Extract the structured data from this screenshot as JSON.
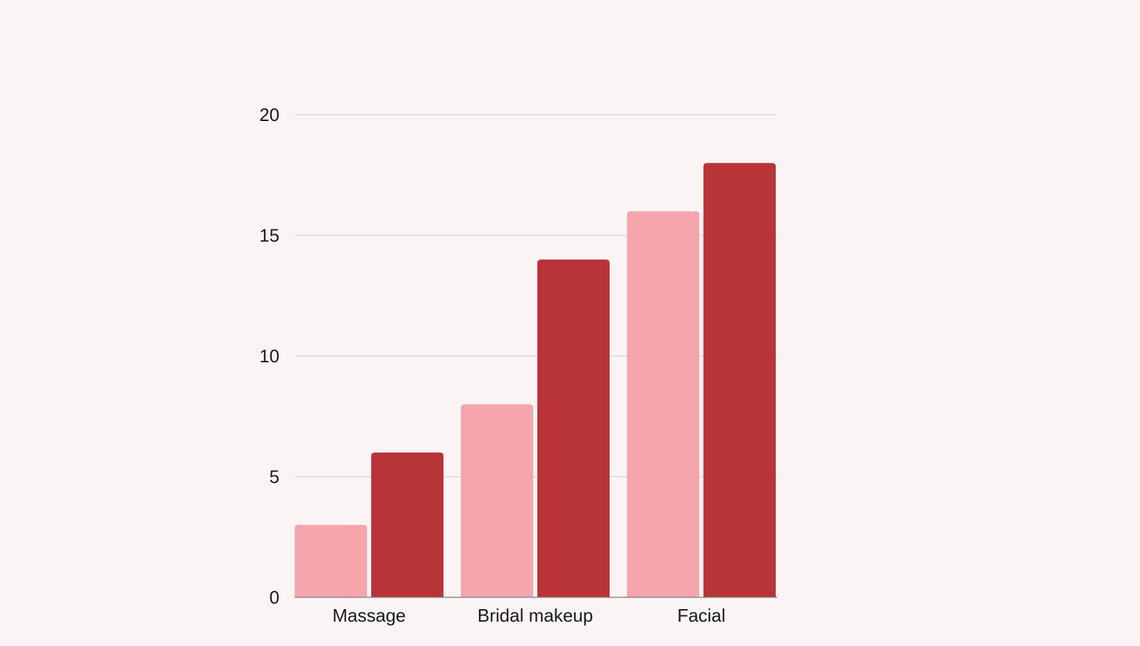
{
  "chart_data": {
    "type": "bar",
    "categories": [
      "Massage",
      "Bridal makeup",
      "Facial"
    ],
    "series": [
      {
        "values": [
          3,
          8,
          16
        ],
        "color": "#f7a5ac"
      },
      {
        "values": [
          6,
          14,
          18
        ],
        "color": "#b83438"
      }
    ],
    "ylim": [
      0,
      20
    ],
    "yticks": [
      0,
      5,
      10,
      15,
      20
    ],
    "grid": true,
    "title": "",
    "xlabel": "",
    "ylabel": ""
  },
  "colors": {
    "background": "#faf4f5",
    "gridline": "#d6d2d3",
    "axis": "#888888",
    "text": "#1a1a1a"
  }
}
